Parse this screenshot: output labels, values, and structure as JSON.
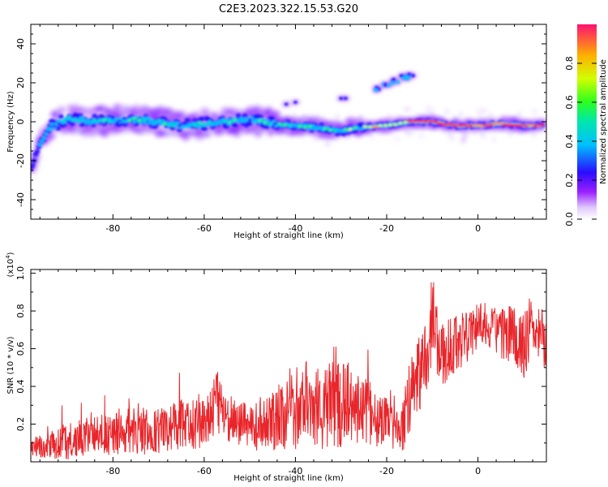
{
  "chart_data": [
    {
      "type": "heatmap",
      "title": "C2E3.2023.322.15.53.G20",
      "xlabel": "Height of straight line (km)",
      "ylabel": "Frequency (Hz)",
      "xlim": [
        -98,
        15
      ],
      "ylim": [
        -50,
        50
      ],
      "xticks": [
        -80,
        -60,
        -40,
        -20,
        0
      ],
      "yticks": [
        -40,
        -20,
        0,
        20,
        40
      ],
      "colorbar": {
        "label": "Normalized spectral amplitude",
        "range": [
          0,
          1
        ],
        "ticks": [
          0.0,
          0.2,
          0.4,
          0.6,
          0.8
        ]
      },
      "ridge": [
        {
          "x": -98,
          "y": -24
        },
        {
          "x": -96,
          "y": -12
        },
        {
          "x": -94,
          "y": -3
        },
        {
          "x": -92,
          "y": -1
        },
        {
          "x": -90,
          "y": 2
        },
        {
          "x": -85,
          "y": 0
        },
        {
          "x": -80,
          "y": 1
        },
        {
          "x": -75,
          "y": 1
        },
        {
          "x": -70,
          "y": 0
        },
        {
          "x": -65,
          "y": -2
        },
        {
          "x": -60,
          "y": -1
        },
        {
          "x": -55,
          "y": 0
        },
        {
          "x": -50,
          "y": 1
        },
        {
          "x": -45,
          "y": -1
        },
        {
          "x": -40,
          "y": -2
        },
        {
          "x": -35,
          "y": -3
        },
        {
          "x": -30,
          "y": -5
        },
        {
          "x": -27,
          "y": -3
        },
        {
          "x": -20,
          "y": -2
        },
        {
          "x": -15,
          "y": 0
        },
        {
          "x": -10,
          "y": 0
        },
        {
          "x": -5,
          "y": -2
        },
        {
          "x": 0,
          "y": -2
        },
        {
          "x": 5,
          "y": -1
        },
        {
          "x": 10,
          "y": -2
        },
        {
          "x": 14,
          "y": -2
        }
      ],
      "upper_feature": [
        {
          "x": -22,
          "y": 17
        },
        {
          "x": -20,
          "y": 19
        },
        {
          "x": -18,
          "y": 21
        },
        {
          "x": -16,
          "y": 23
        },
        {
          "x": -15,
          "y": 24
        }
      ]
    },
    {
      "type": "line",
      "xlabel": "Height of straight line (km)",
      "ylabel": "SNR (10 * v/v)",
      "y_multiplier": "(x10",
      "y_multiplier_exp": "4",
      "y_multiplier_close": ")",
      "xlim": [
        -98,
        15
      ],
      "ylim": [
        0,
        1.02
      ],
      "xticks": [
        -80,
        -60,
        -40,
        -20,
        0
      ],
      "yticks": [
        0.2,
        0.4,
        0.6,
        0.8,
        1.0
      ],
      "series": [
        {
          "color": "#e8252a",
          "x": [
            -98,
            -95,
            -90,
            -85,
            -80,
            -75,
            -70,
            -65,
            -60,
            -57,
            -55,
            -50,
            -45,
            -40,
            -38,
            -35,
            -30,
            -25,
            -20,
            -17,
            -15,
            -13,
            -11,
            -10,
            -8,
            -5,
            -2,
            0,
            3,
            5,
            8,
            10,
            12,
            14
          ],
          "y": [
            0.08,
            0.08,
            0.11,
            0.13,
            0.15,
            0.17,
            0.16,
            0.2,
            0.22,
            0.32,
            0.24,
            0.18,
            0.22,
            0.27,
            0.38,
            0.28,
            0.32,
            0.28,
            0.2,
            0.14,
            0.32,
            0.48,
            0.58,
            0.78,
            0.55,
            0.62,
            0.68,
            0.72,
            0.7,
            0.66,
            0.68,
            0.62,
            0.68,
            0.65
          ],
          "amplitude": [
            0.05,
            0.06,
            0.1,
            0.1,
            0.12,
            0.15,
            0.12,
            0.13,
            0.16,
            0.18,
            0.13,
            0.12,
            0.16,
            0.22,
            0.24,
            0.22,
            0.24,
            0.18,
            0.14,
            0.1,
            0.22,
            0.22,
            0.2,
            0.24,
            0.18,
            0.16,
            0.14,
            0.14,
            0.14,
            0.15,
            0.16,
            0.18,
            0.16,
            0.15
          ]
        }
      ]
    }
  ]
}
